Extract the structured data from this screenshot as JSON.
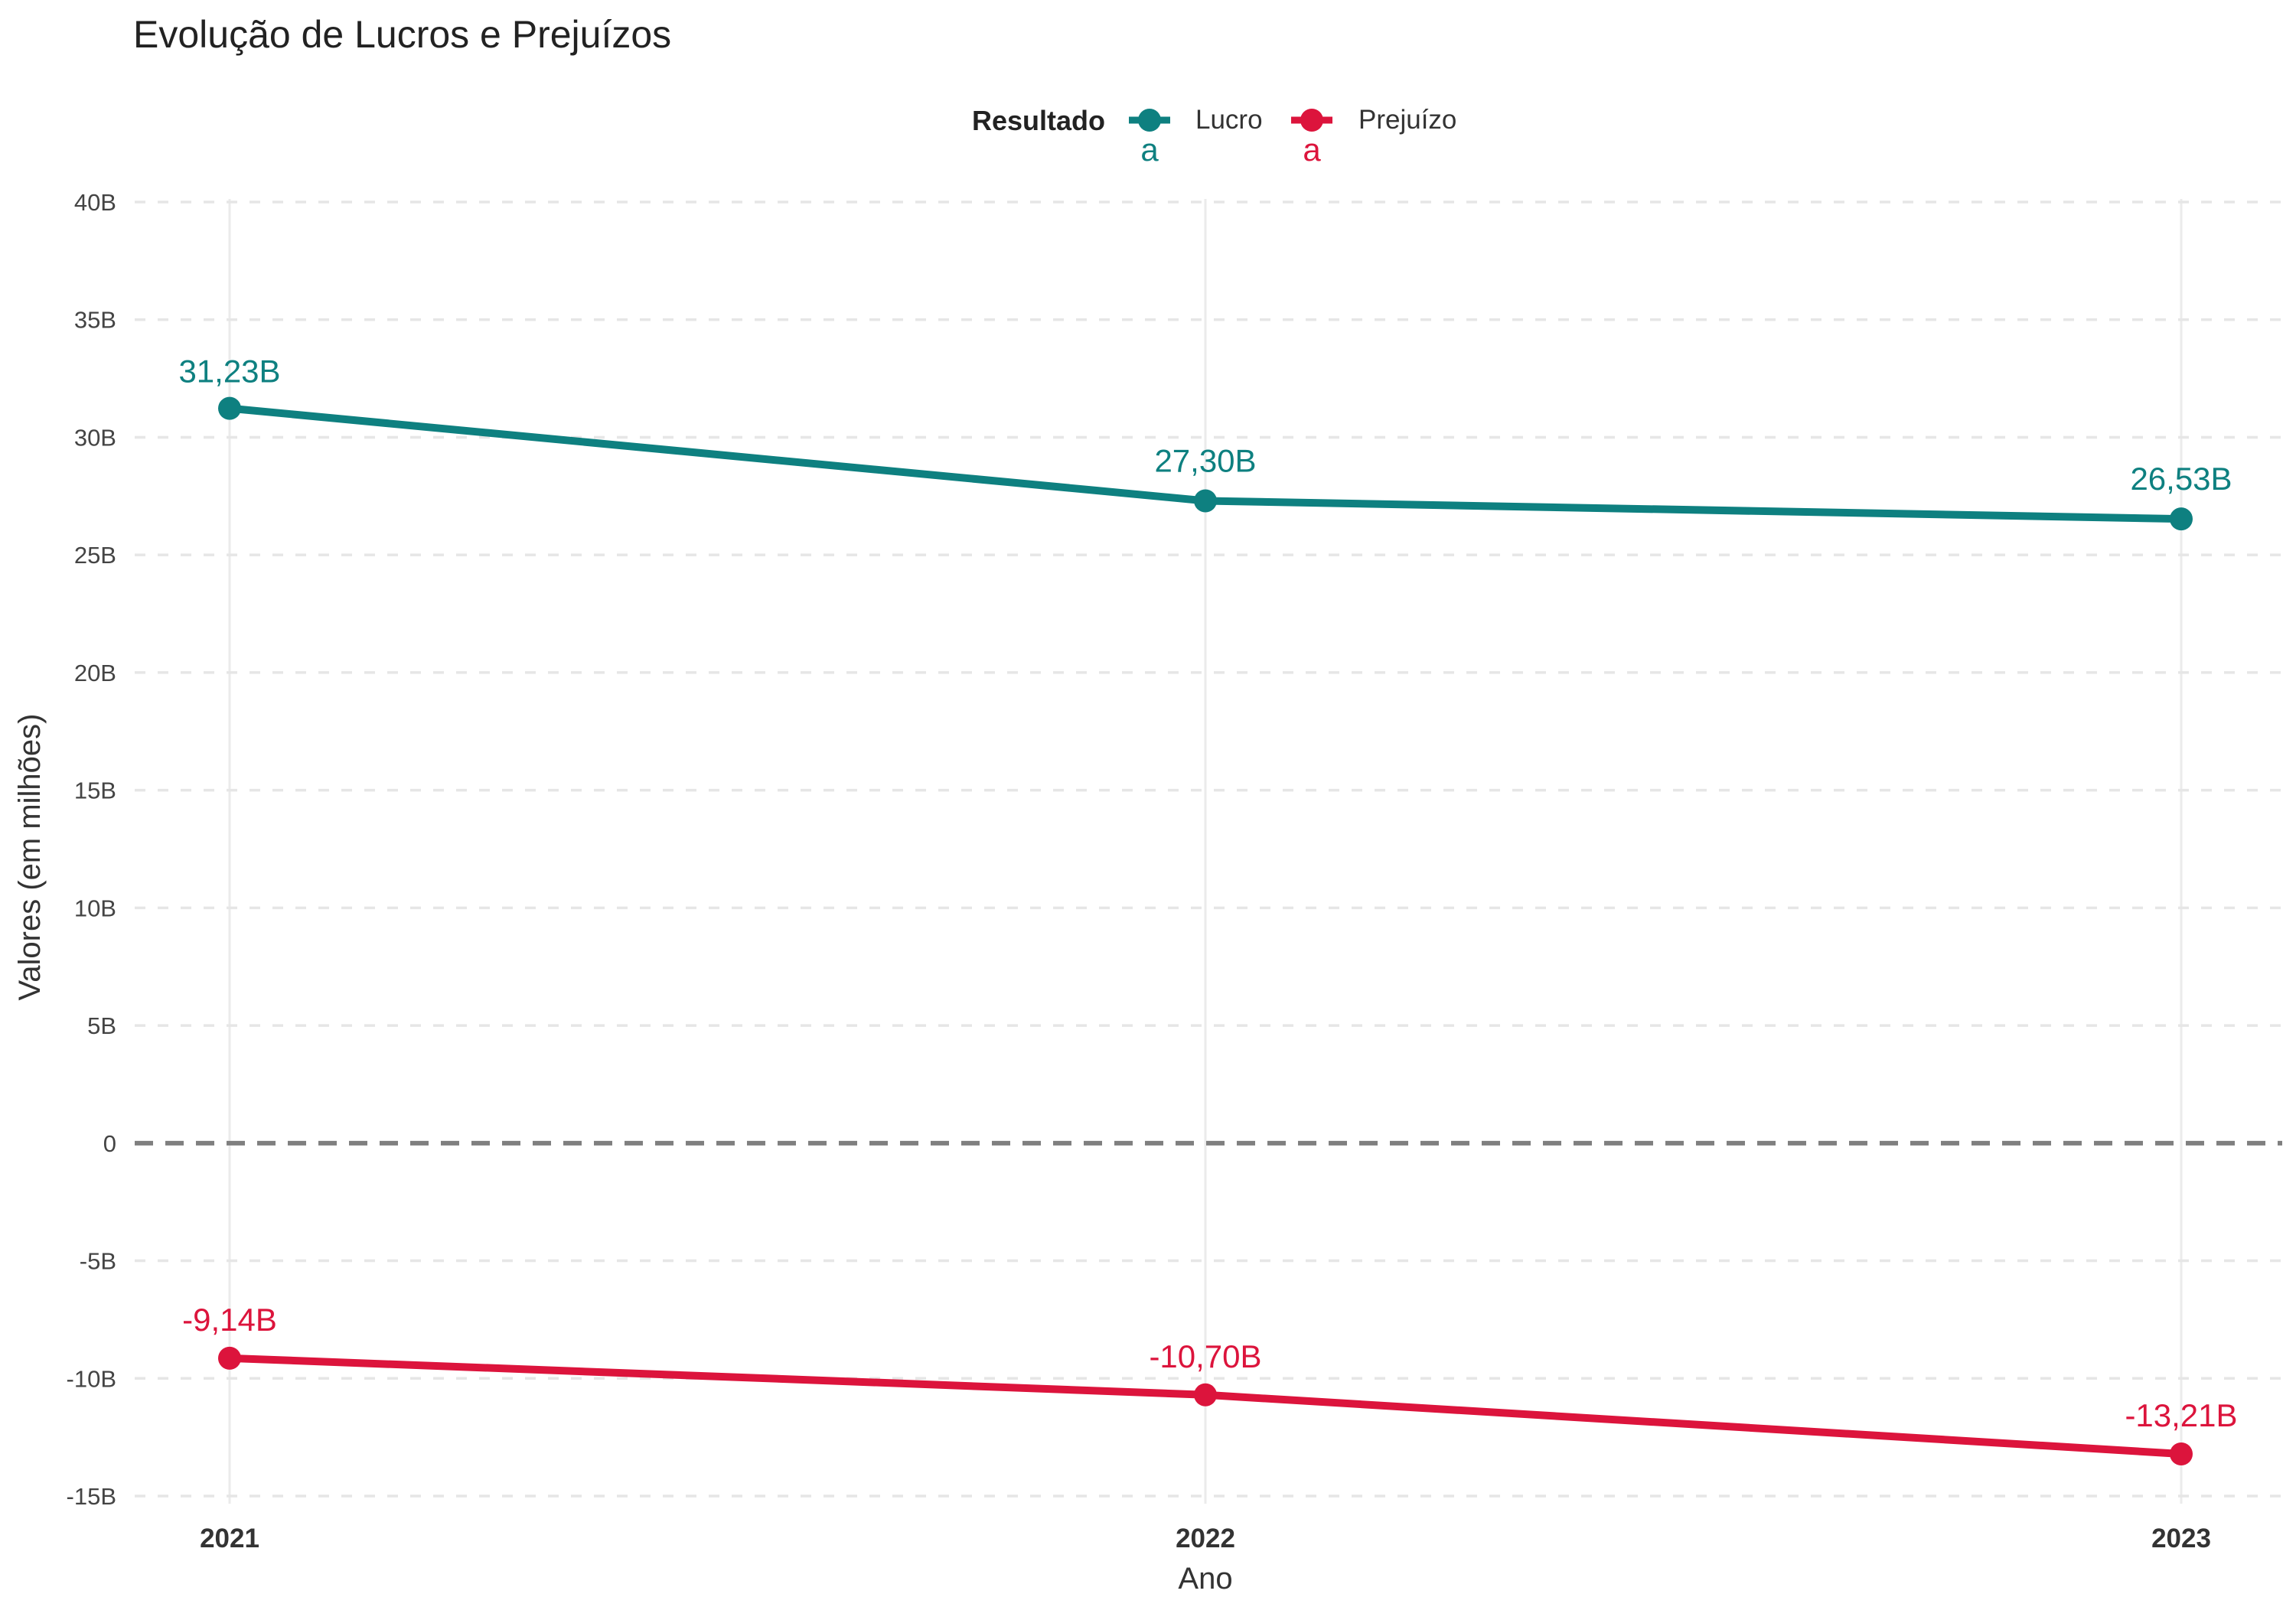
{
  "chart_data": {
    "type": "line",
    "title": "Evolução de Lucros e Prejuízos",
    "xlabel": "Ano",
    "ylabel": "Valores (em milhões)",
    "x": [
      "2021",
      "2022",
      "2023"
    ],
    "ylim": [
      -15,
      40
    ],
    "yticks": [
      -15,
      -10,
      -5,
      0,
      5,
      10,
      15,
      20,
      25,
      30,
      35,
      40
    ],
    "ytick_labels": [
      "-15B",
      "-10B",
      "-5B",
      "0",
      "5B",
      "10B",
      "15B",
      "20B",
      "25B",
      "30B",
      "35B",
      "40B"
    ],
    "grid": true,
    "zero_line": "dashed",
    "legend": {
      "title": "Resultado",
      "placement": "top",
      "key_glyph_text": "a"
    },
    "series": [
      {
        "name": "Lucro",
        "color": "#0E8080",
        "values": [
          31.23,
          27.3,
          26.53
        ],
        "labels": [
          "31,23B",
          "27,30B",
          "26,53B"
        ]
      },
      {
        "name": "Prejuízo",
        "color": "#DC143C",
        "values": [
          -9.14,
          -10.7,
          -13.21
        ],
        "labels": [
          "-9,14B",
          "-10,70B",
          "-13,21B"
        ]
      }
    ]
  }
}
